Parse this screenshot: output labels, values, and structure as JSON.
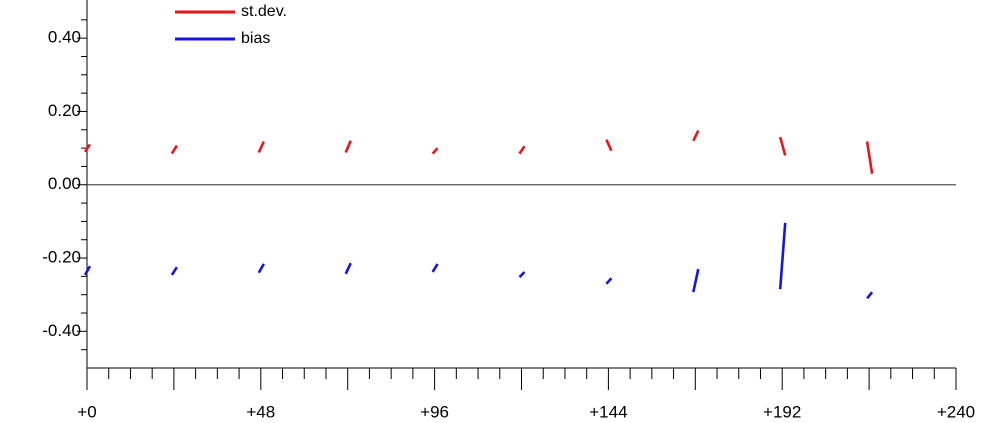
{
  "chart_data": {
    "type": "segment",
    "x": [
      0,
      24,
      48,
      72,
      96,
      120,
      144,
      168,
      192,
      216
    ],
    "series": [
      {
        "name": "st.dev.",
        "color": "#e8161b",
        "values": [
          [
            0.09,
            0.11
          ],
          [
            0.085,
            0.107
          ],
          [
            0.088,
            0.118
          ],
          [
            0.088,
            0.12
          ],
          [
            0.085,
            0.1
          ],
          [
            0.085,
            0.105
          ],
          [
            0.123,
            0.093
          ],
          [
            0.12,
            0.148
          ],
          [
            0.13,
            0.08
          ],
          [
            0.118,
            0.03
          ]
        ]
      },
      {
        "name": "bias",
        "color": "#1515e0",
        "values": [
          [
            -0.246,
            -0.222
          ],
          [
            -0.246,
            -0.225
          ],
          [
            -0.24,
            -0.216
          ],
          [
            -0.243,
            -0.214
          ],
          [
            -0.238,
            -0.216
          ],
          [
            -0.252,
            -0.238
          ],
          [
            -0.27,
            -0.255
          ],
          [
            -0.293,
            -0.23
          ],
          [
            -0.285,
            -0.104
          ],
          [
            -0.31,
            -0.293
          ]
        ]
      }
    ],
    "xlim": [
      0,
      240
    ],
    "xticks": [
      {
        "value": 0,
        "label": "+0"
      },
      {
        "value": 48,
        "label": "+48"
      },
      {
        "value": 96,
        "label": "+96"
      },
      {
        "value": 144,
        "label": "+144"
      },
      {
        "value": 192,
        "label": "+192"
      },
      {
        "value": 240,
        "label": "+240"
      }
    ],
    "xminorticks": [
      6,
      12,
      18,
      24,
      30,
      36,
      42,
      54,
      60,
      66,
      72,
      78,
      84,
      90,
      102,
      108,
      114,
      120,
      126,
      132,
      138,
      150,
      156,
      162,
      168,
      174,
      180,
      186,
      198,
      204,
      210,
      216,
      222,
      228,
      234
    ],
    "ylim": [
      -0.5,
      0.5
    ],
    "yticks": [
      {
        "value": -0.4,
        "label": "-0.40"
      },
      {
        "value": -0.2,
        "label": "-0.20"
      },
      {
        "value": 0,
        "label": "0.00"
      },
      {
        "value": 0.2,
        "label": "0.20"
      },
      {
        "value": 0.4,
        "label": "0.40"
      }
    ],
    "yminorticks": [
      -0.45,
      -0.35,
      -0.3,
      -0.25,
      -0.15,
      -0.1,
      -0.05,
      0.05,
      0.1,
      0.15,
      0.25,
      0.3,
      0.35,
      0.45
    ],
    "hline": 0,
    "legend": "upper-left"
  }
}
